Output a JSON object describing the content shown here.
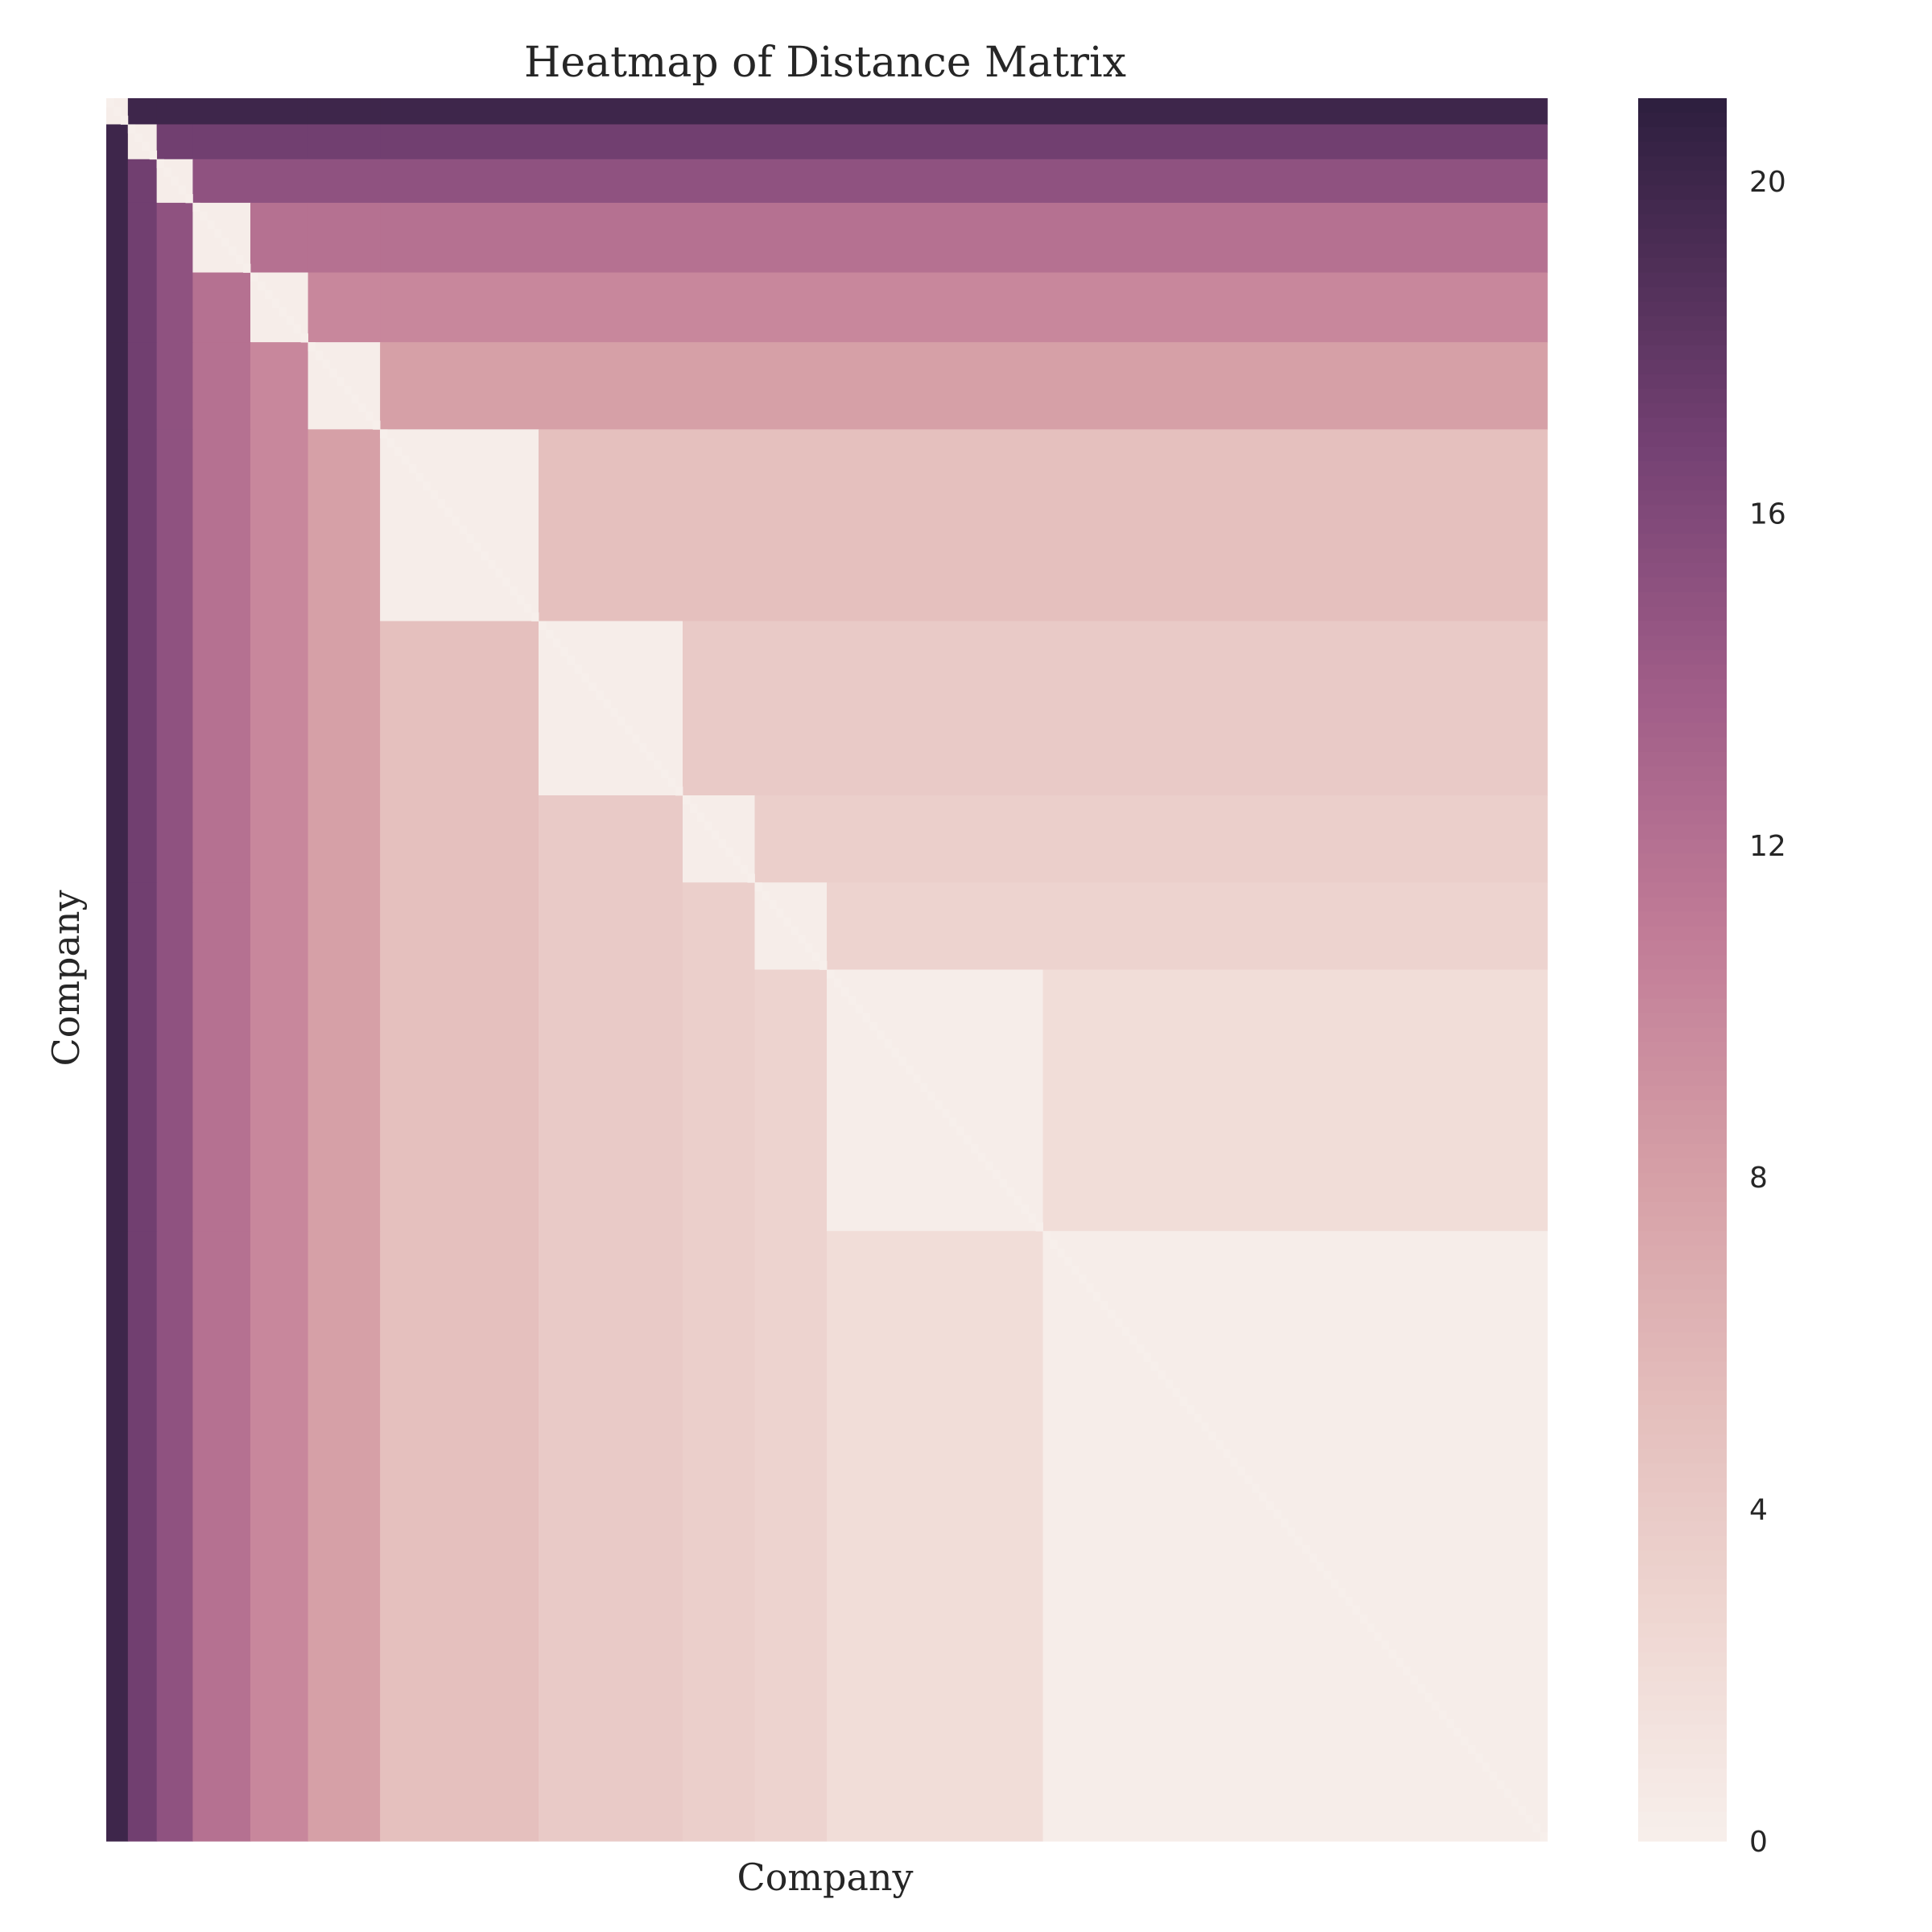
{
  "chart_data": {
    "type": "heatmap",
    "title": "Heatmap of Distance Matrix",
    "xlabel": "Company",
    "ylabel": "Company",
    "x_tick_labels": [],
    "y_tick_labels": [],
    "colorbar": {
      "min": 0,
      "max": 21,
      "ticks": [
        0,
        4,
        8,
        12,
        16,
        20
      ],
      "colormap": "cubehelix light (seaborn default)",
      "color_low": "#f7efeb",
      "color_high": "#2d1e3e"
    },
    "n_companies": 200,
    "cluster_boundaries": [
      3,
      7,
      12,
      20,
      28,
      38,
      60,
      80,
      90,
      100,
      130,
      200
    ],
    "cluster_distance_from_origin": [
      20,
      17,
      15,
      12,
      10,
      8,
      5,
      4,
      3.5,
      3,
      2,
      1
    ],
    "within_cluster_distance": 0.2,
    "diagonal_value": 0,
    "note_values": "Matrix values are approximated as an ultrametric block structure: distance between items in clusters a and b equals the level of the coarser of the two clusters."
  }
}
